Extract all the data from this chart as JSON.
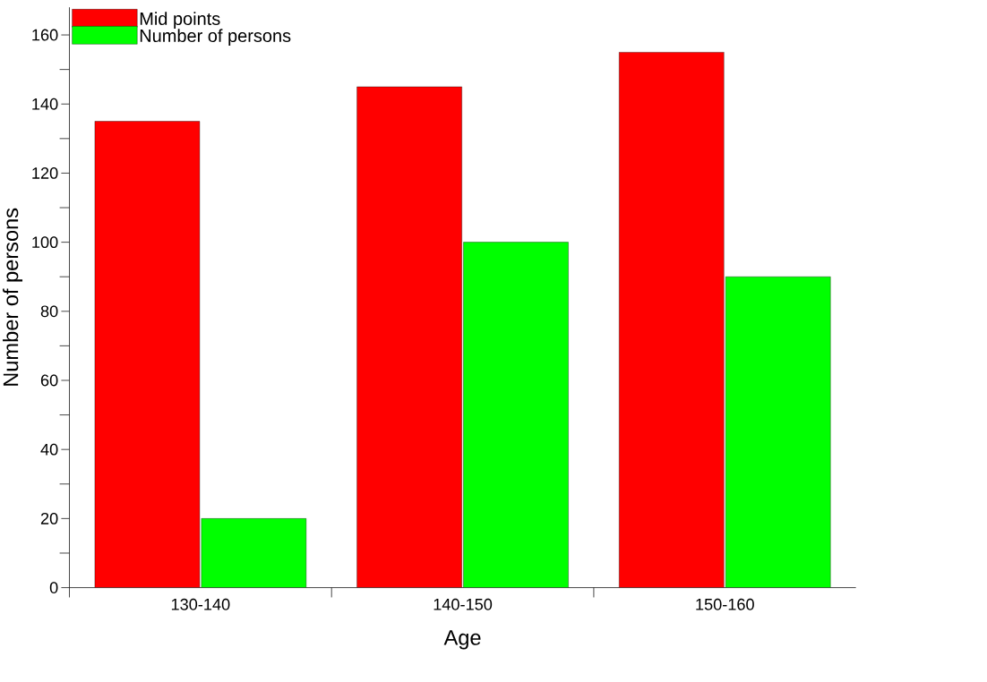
{
  "chart_data": {
    "type": "bar",
    "xlabel": "Age",
    "ylabel": "Number of persons",
    "categories": [
      "130-140",
      "140-150",
      "150-160"
    ],
    "series": [
      {
        "name": "Mid points",
        "color": "#ff0000",
        "values": [
          135,
          145,
          155
        ]
      },
      {
        "name": "Number of persons",
        "color": "#00ff00",
        "values": [
          20,
          100,
          90
        ]
      }
    ],
    "ylim": [
      0,
      168
    ],
    "yticks": [
      0,
      20,
      40,
      60,
      80,
      100,
      120,
      140,
      160
    ],
    "grid": false,
    "legend": "top left"
  }
}
